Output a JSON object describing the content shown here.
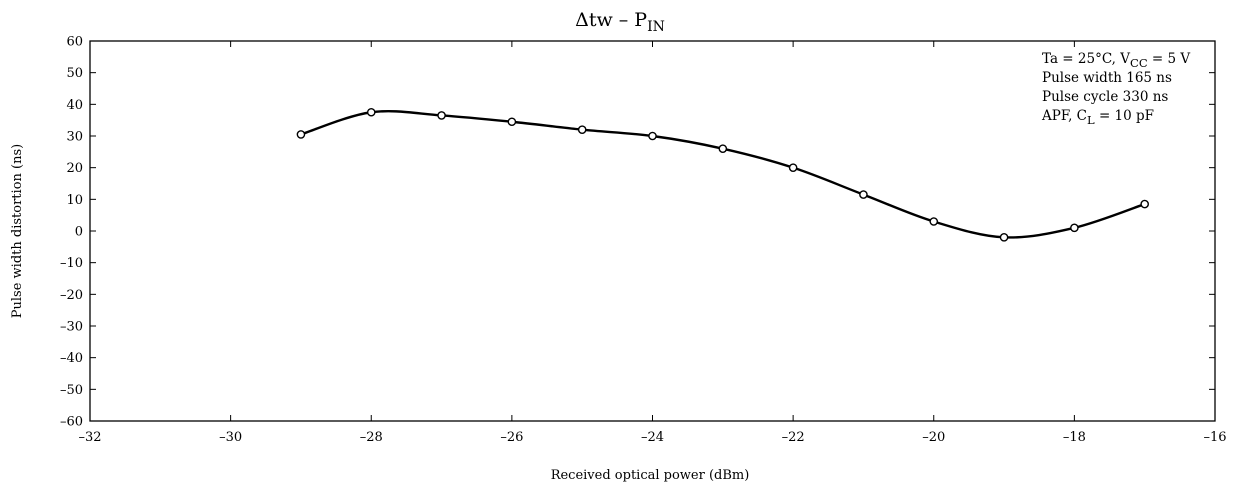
{
  "chart_data": {
    "type": "line",
    "title": "Δtw – P",
    "title_sub": "IN",
    "xlabel": "Received optical power   (dBm)",
    "ylabel": "Pulse width distortion   (ns)",
    "xlim": [
      -32,
      -16
    ],
    "ylim": [
      -60,
      60
    ],
    "xticks": [
      -32,
      -30,
      -28,
      -26,
      -24,
      -22,
      -20,
      -18,
      -16
    ],
    "yticks": [
      60,
      50,
      40,
      30,
      20,
      10,
      0,
      -10,
      -20,
      -30,
      -40,
      -50,
      -60
    ],
    "grid": false,
    "series": [
      {
        "x": [
          -29,
          -28,
          -27,
          -26,
          -25,
          -24,
          -23,
          -22,
          -21,
          -20,
          -19,
          -18,
          -17
        ],
        "y": [
          30.5,
          37.5,
          36.5,
          34.5,
          32,
          30,
          26,
          20,
          11.5,
          3,
          -2,
          1,
          8.5
        ]
      }
    ],
    "annotations": {
      "line1_a": "Ta = 25°C, V",
      "line1_sub": "CC",
      "line1_b": " = 5 V",
      "line2": "Pulse width 165 ns",
      "line3": "Pulse cycle 330 ns",
      "line4_a": "APF, C",
      "line4_sub": "L",
      "line4_b": " = 10 pF"
    },
    "colors": {
      "line": "#000000",
      "marker_fill": "#ffffff"
    }
  }
}
